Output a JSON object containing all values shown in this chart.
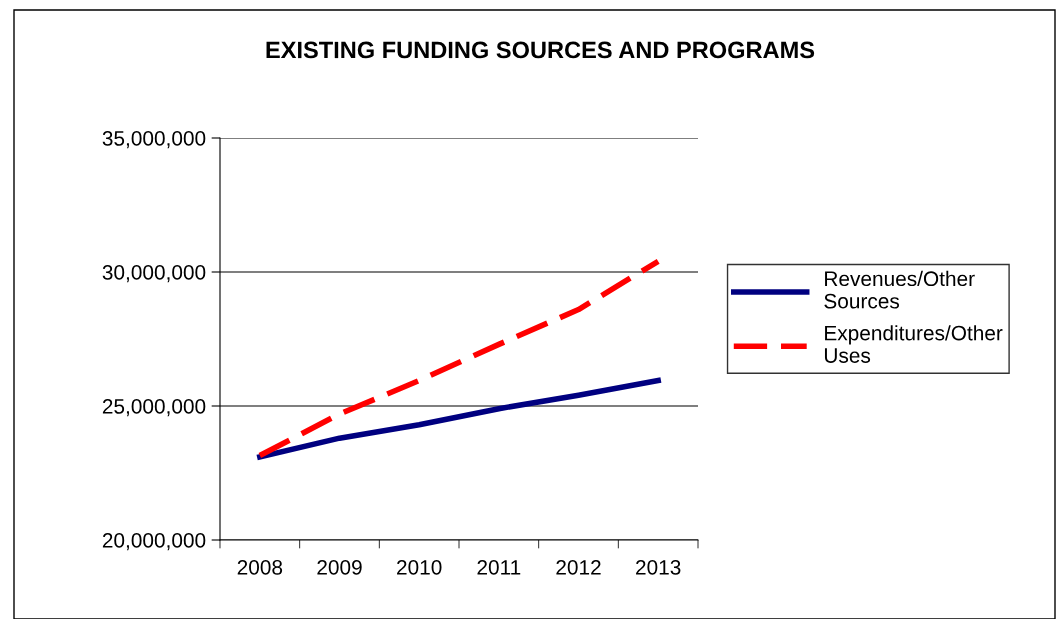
{
  "chart_data": {
    "type": "line",
    "title": "EXISTING FUNDING SOURCES AND PROGRAMS",
    "categories": [
      "2008",
      "2009",
      "2010",
      "2011",
      "2012",
      "2013"
    ],
    "series": [
      {
        "name": "Revenues/Other Sources",
        "color": "#000080",
        "line_style": "solid",
        "values": [
          23100000,
          23800000,
          24300000,
          24900000,
          25400000,
          25950000
        ]
      },
      {
        "name": "Expenditures/Other Uses",
        "color": "#ff0000",
        "line_style": "dashed",
        "values": [
          23150000,
          24700000,
          25950000,
          27300000,
          28600000,
          30400000
        ]
      }
    ],
    "ylim": [
      20000000,
      35000000
    ],
    "yticks": [
      {
        "value": 20000000,
        "label": "20,000,000"
      },
      {
        "value": 25000000,
        "label": "25,000,000"
      },
      {
        "value": 30000000,
        "label": "30,000,000"
      },
      {
        "value": 35000000,
        "label": "35,000,000"
      }
    ],
    "grid": "y",
    "legend": "right",
    "marker": "none"
  }
}
